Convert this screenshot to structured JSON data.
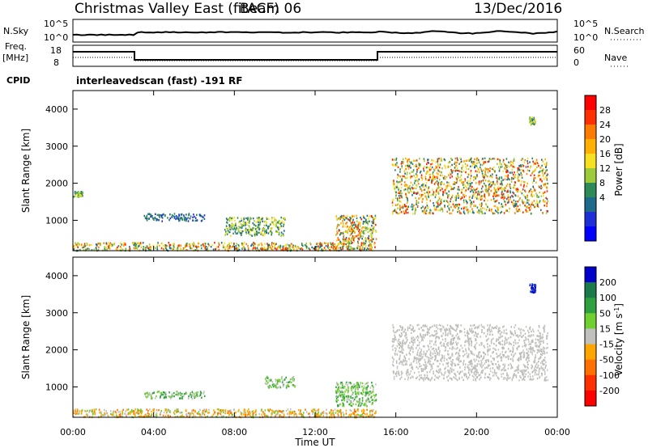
{
  "header": {
    "title": "Christmas Valley East (fitACF)",
    "beam": "Beam 06",
    "date": "13/Dec/2016"
  },
  "top_panels": {
    "nsky_label": "N.Sky",
    "nsearch_label": "N.Search",
    "noise_ticks": [
      "10^5",
      "10^0"
    ],
    "freq_label_1": "Freq.",
    "freq_label_2": "[MHz]",
    "freq_ticks": [
      "18",
      "8"
    ],
    "nave_label": "Nave",
    "nave_ticks": [
      "60",
      "0"
    ],
    "cpid_label": "CPID",
    "cpid_value": "interleavedscan (fast) -191 RF"
  },
  "colors": {
    "scatter_low": "#1e2fd8",
    "scatter_mid": "#2e8b57",
    "scatter_high": "#ff2000",
    "ground": "#c0c0bc"
  },
  "chart_data": [
    {
      "type": "heatmap",
      "name": "power",
      "ylabel": "Slant Range [km]",
      "xlabel": "",
      "xlim": [
        0,
        24
      ],
      "ylim": [
        180,
        4500
      ],
      "xticks": [
        "00:00",
        "04:00",
        "08:00",
        "12:00",
        "16:00",
        "20:00",
        "00:00"
      ],
      "yticks": [
        1000,
        2000,
        3000,
        4000
      ],
      "colorbar": {
        "label": "Power [dB]",
        "ticks": [
          "28",
          "24",
          "20",
          "16",
          "12",
          "8",
          "4"
        ],
        "colors": [
          "#ff0000",
          "#ff3000",
          "#ff7a00",
          "#ffb000",
          "#f7e020",
          "#9ecb3c",
          "#2e8b57",
          "#1e6a8a",
          "#1e2fd8",
          "#0000ff"
        ]
      },
      "regions": [
        {
          "t0": 0.0,
          "t1": 15.0,
          "r0": 200,
          "r1": 420,
          "level": "high"
        },
        {
          "t0": 0.0,
          "t1": 0.5,
          "r0": 1650,
          "r1": 1800,
          "level": "mid"
        },
        {
          "t0": 3.5,
          "t1": 6.5,
          "r0": 1000,
          "r1": 1200,
          "level": "low"
        },
        {
          "t0": 7.5,
          "t1": 10.5,
          "r0": 600,
          "r1": 1100,
          "level": "mid"
        },
        {
          "t0": 13.0,
          "t1": 15.0,
          "r0": 450,
          "r1": 1150,
          "level": "high"
        },
        {
          "t0": 15.8,
          "t1": 23.5,
          "r0": 1200,
          "r1": 2700,
          "level": "high"
        },
        {
          "t0": 22.6,
          "t1": 22.9,
          "r0": 3600,
          "r1": 3800,
          "level": "mid"
        }
      ]
    },
    {
      "type": "heatmap",
      "name": "velocity",
      "ylabel": "Slant Range [km]",
      "xlabel": "Time UT",
      "xlim": [
        0,
        24
      ],
      "ylim": [
        180,
        4500
      ],
      "xticks": [
        "00:00",
        "04:00",
        "08:00",
        "12:00",
        "16:00",
        "20:00",
        "00:00"
      ],
      "yticks": [
        1000,
        2000,
        3000,
        4000
      ],
      "colorbar": {
        "label": "Velocity [m s^-1]",
        "ticks": [
          "200",
          "100",
          "50",
          "15",
          "-15",
          "-50",
          "-100",
          "-200"
        ],
        "colors": [
          "#0000cc",
          "#1a7a4a",
          "#2ea040",
          "#70d030",
          "#c0c0bc",
          "#ffa500",
          "#ff7000",
          "#ff3000",
          "#ff0000"
        ]
      },
      "regions": [
        {
          "t0": 0.0,
          "t1": 15.0,
          "r0": 200,
          "r1": 420,
          "level": "orange"
        },
        {
          "t0": 3.5,
          "t1": 6.5,
          "r0": 700,
          "r1": 900,
          "level": "green"
        },
        {
          "t0": 9.5,
          "t1": 11.0,
          "r0": 1000,
          "r1": 1300,
          "level": "green"
        },
        {
          "t0": 13.0,
          "t1": 15.0,
          "r0": 500,
          "r1": 1150,
          "level": "green"
        },
        {
          "t0": 15.8,
          "t1": 23.5,
          "r0": 1200,
          "r1": 2700,
          "level": "ground"
        },
        {
          "t0": 22.6,
          "t1": 22.9,
          "r0": 3550,
          "r1": 3800,
          "level": "blue"
        }
      ]
    }
  ]
}
